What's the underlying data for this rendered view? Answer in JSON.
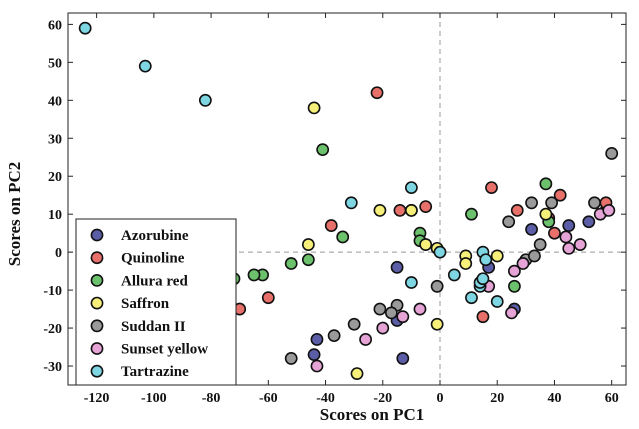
{
  "chart_data": {
    "type": "scatter",
    "title": "",
    "xlabel": "Scores on PC1",
    "ylabel": "Scores on PC2",
    "xlim": [
      -130,
      65
    ],
    "ylim": [
      -35,
      63
    ],
    "xticks": [
      -120,
      -100,
      -80,
      -60,
      -40,
      -20,
      0,
      20,
      40,
      60
    ],
    "yticks": [
      -30,
      -20,
      -10,
      0,
      10,
      20,
      30,
      40,
      50,
      60
    ],
    "reference_lines": {
      "x": 0,
      "y": 0,
      "style": "dashed"
    },
    "legend_position": "bottom-left",
    "grid": false,
    "series": [
      {
        "name": "Azorubine",
        "color": "#5b5ea6",
        "points": [
          [
            -43,
            -23
          ],
          [
            -44,
            -27
          ],
          [
            -15,
            -4
          ],
          [
            -13,
            -28
          ],
          [
            -15,
            -18
          ],
          [
            17,
            -4
          ],
          [
            26,
            -15
          ],
          [
            32,
            6
          ],
          [
            45,
            7
          ],
          [
            52,
            8
          ],
          [
            58,
            11
          ]
        ]
      },
      {
        "name": "Quinoline",
        "color": "#e8706a",
        "points": [
          [
            -22,
            42
          ],
          [
            -38,
            7
          ],
          [
            -14,
            11
          ],
          [
            -10,
            11
          ],
          [
            -5,
            12
          ],
          [
            18,
            17
          ],
          [
            27,
            11
          ],
          [
            38,
            9
          ],
          [
            42,
            15
          ],
          [
            40,
            5
          ],
          [
            58,
            13
          ],
          [
            -70,
            -15
          ],
          [
            -60,
            -12
          ],
          [
            15,
            -17
          ]
        ]
      },
      {
        "name": "Allura red",
        "color": "#6cc16c",
        "points": [
          [
            -41,
            27
          ],
          [
            -34,
            4
          ],
          [
            -46,
            -2
          ],
          [
            -52,
            -3
          ],
          [
            -62,
            -6
          ],
          [
            -65,
            -6
          ],
          [
            -72,
            -7
          ],
          [
            -7,
            5
          ],
          [
            -7,
            3
          ],
          [
            11,
            10
          ],
          [
            37,
            18
          ],
          [
            26,
            -9
          ],
          [
            38,
            8
          ]
        ]
      },
      {
        "name": "Saffron",
        "color": "#f6f07a",
        "points": [
          [
            -44,
            38
          ],
          [
            -21,
            11
          ],
          [
            -10,
            11
          ],
          [
            -46,
            2
          ],
          [
            -5,
            2
          ],
          [
            -1,
            1
          ],
          [
            9,
            -1
          ],
          [
            9,
            -3
          ],
          [
            20,
            -1
          ],
          [
            -1,
            -19
          ],
          [
            -29,
            -32
          ],
          [
            37,
            10
          ]
        ]
      },
      {
        "name": "Suddan II",
        "color": "#9a9a9a",
        "points": [
          [
            60,
            26
          ],
          [
            32,
            13
          ],
          [
            54,
            13
          ],
          [
            24,
            8
          ],
          [
            35,
            2
          ],
          [
            30,
            -2
          ],
          [
            33,
            -1
          ],
          [
            -1,
            -9
          ],
          [
            -15,
            -14
          ],
          [
            -17,
            -16
          ],
          [
            -21,
            -15
          ],
          [
            -30,
            -19
          ],
          [
            -37,
            -22
          ],
          [
            -52,
            -28
          ],
          [
            39,
            13
          ]
        ]
      },
      {
        "name": "Sunset yellow",
        "color": "#e6a4d6",
        "points": [
          [
            26,
            -5
          ],
          [
            29,
            -3
          ],
          [
            17,
            -9
          ],
          [
            25,
            -16
          ],
          [
            44,
            4
          ],
          [
            49,
            2
          ],
          [
            56,
            10
          ],
          [
            59,
            11
          ],
          [
            45,
            1
          ],
          [
            -7,
            -15
          ],
          [
            -13,
            -17
          ],
          [
            -20,
            -20
          ],
          [
            -26,
            -23
          ],
          [
            -43,
            -30
          ]
        ]
      },
      {
        "name": "Tartrazine",
        "color": "#7fd6e3",
        "points": [
          [
            -124,
            59
          ],
          [
            -103,
            49
          ],
          [
            -82,
            40
          ],
          [
            -31,
            13
          ],
          [
            -10,
            17
          ],
          [
            0,
            0
          ],
          [
            5,
            -6
          ],
          [
            11,
            -12
          ],
          [
            14,
            -9
          ],
          [
            14,
            -8
          ],
          [
            15,
            -7
          ],
          [
            15,
            0
          ],
          [
            -10,
            -8
          ],
          [
            16,
            -2
          ],
          [
            20,
            -13
          ]
        ]
      }
    ]
  }
}
